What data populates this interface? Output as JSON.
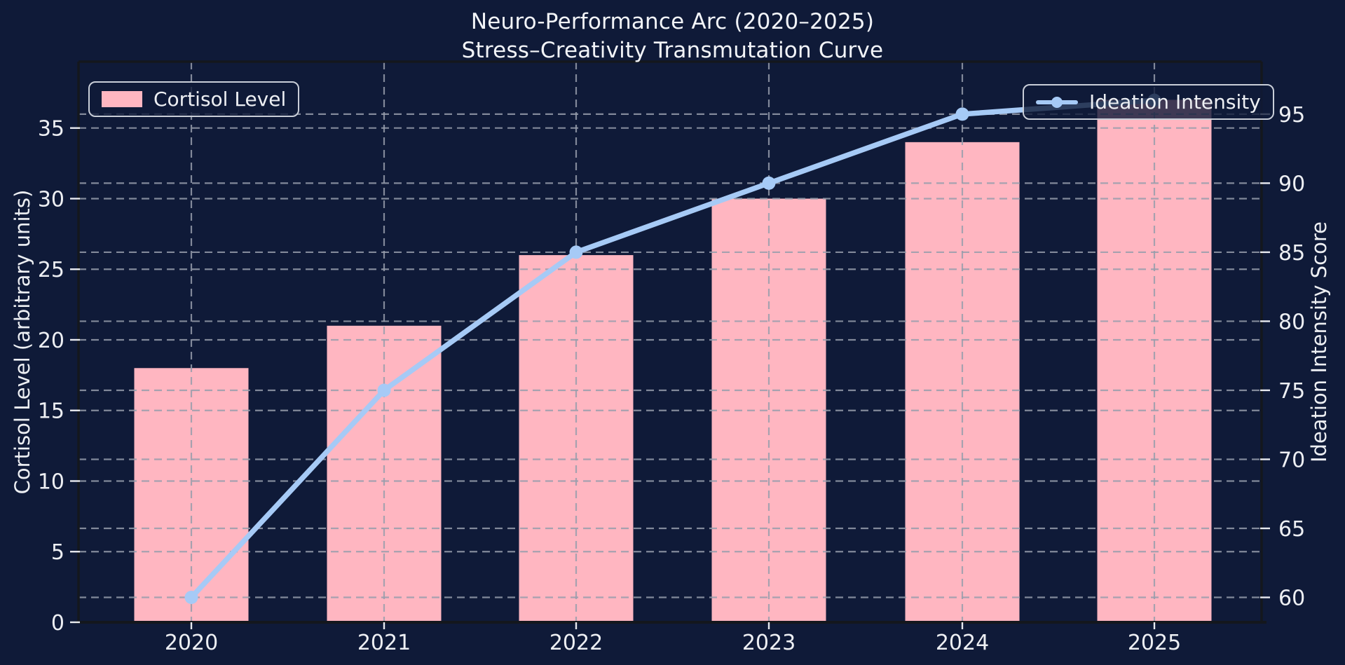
{
  "title": {
    "line1": "Neuro-Performance Arc (2020–2025)",
    "line2": "Stress–Creativity Transmutation Curve"
  },
  "legend": {
    "cortisol_label": "Cortisol Level",
    "ideation_label": "Ideation Intensity"
  },
  "colors": {
    "background": "#0f1a38",
    "bar": "#ffb6c1",
    "line": "#a6caf6",
    "grid": "#969dac",
    "text": "#edeff3",
    "spine": "#14171d",
    "tick_mark": "#e8eaef"
  },
  "chart_data": {
    "type": "bar",
    "subtype": "bar+line dual-axis combo",
    "title": "Neuro-Performance Arc (2020–2025)\nStress–Creativity Transmutation Curve",
    "categories": [
      "2020",
      "2021",
      "2022",
      "2023",
      "2024",
      "2025"
    ],
    "series": [
      {
        "name": "Cortisol Level",
        "type": "bar",
        "axis": "left",
        "color": "#ffb6c1",
        "values": [
          18,
          21,
          26,
          30,
          34,
          37
        ]
      },
      {
        "name": "Ideation Intensity",
        "type": "line",
        "axis": "right",
        "color": "#a6caf6",
        "marker": "circle",
        "values": [
          60,
          75,
          85,
          90,
          95,
          96
        ]
      }
    ],
    "xlabel": "",
    "left_axis": {
      "label": "Cortisol Level (arbitrary units)",
      "ticks": [
        0,
        5,
        10,
        15,
        20,
        25,
        30,
        35
      ],
      "ylim": [
        0,
        39.7
      ]
    },
    "right_axis": {
      "label": "Ideation Intensity Score",
      "ticks": [
        60,
        65,
        70,
        75,
        80,
        85,
        90,
        95
      ],
      "ylim": [
        58.2,
        98.8
      ]
    },
    "grid": {
      "on": true,
      "style": "dashed",
      "both_axes": true
    },
    "legend_position": {
      "cortisol": "upper left",
      "ideation": "upper right"
    }
  }
}
